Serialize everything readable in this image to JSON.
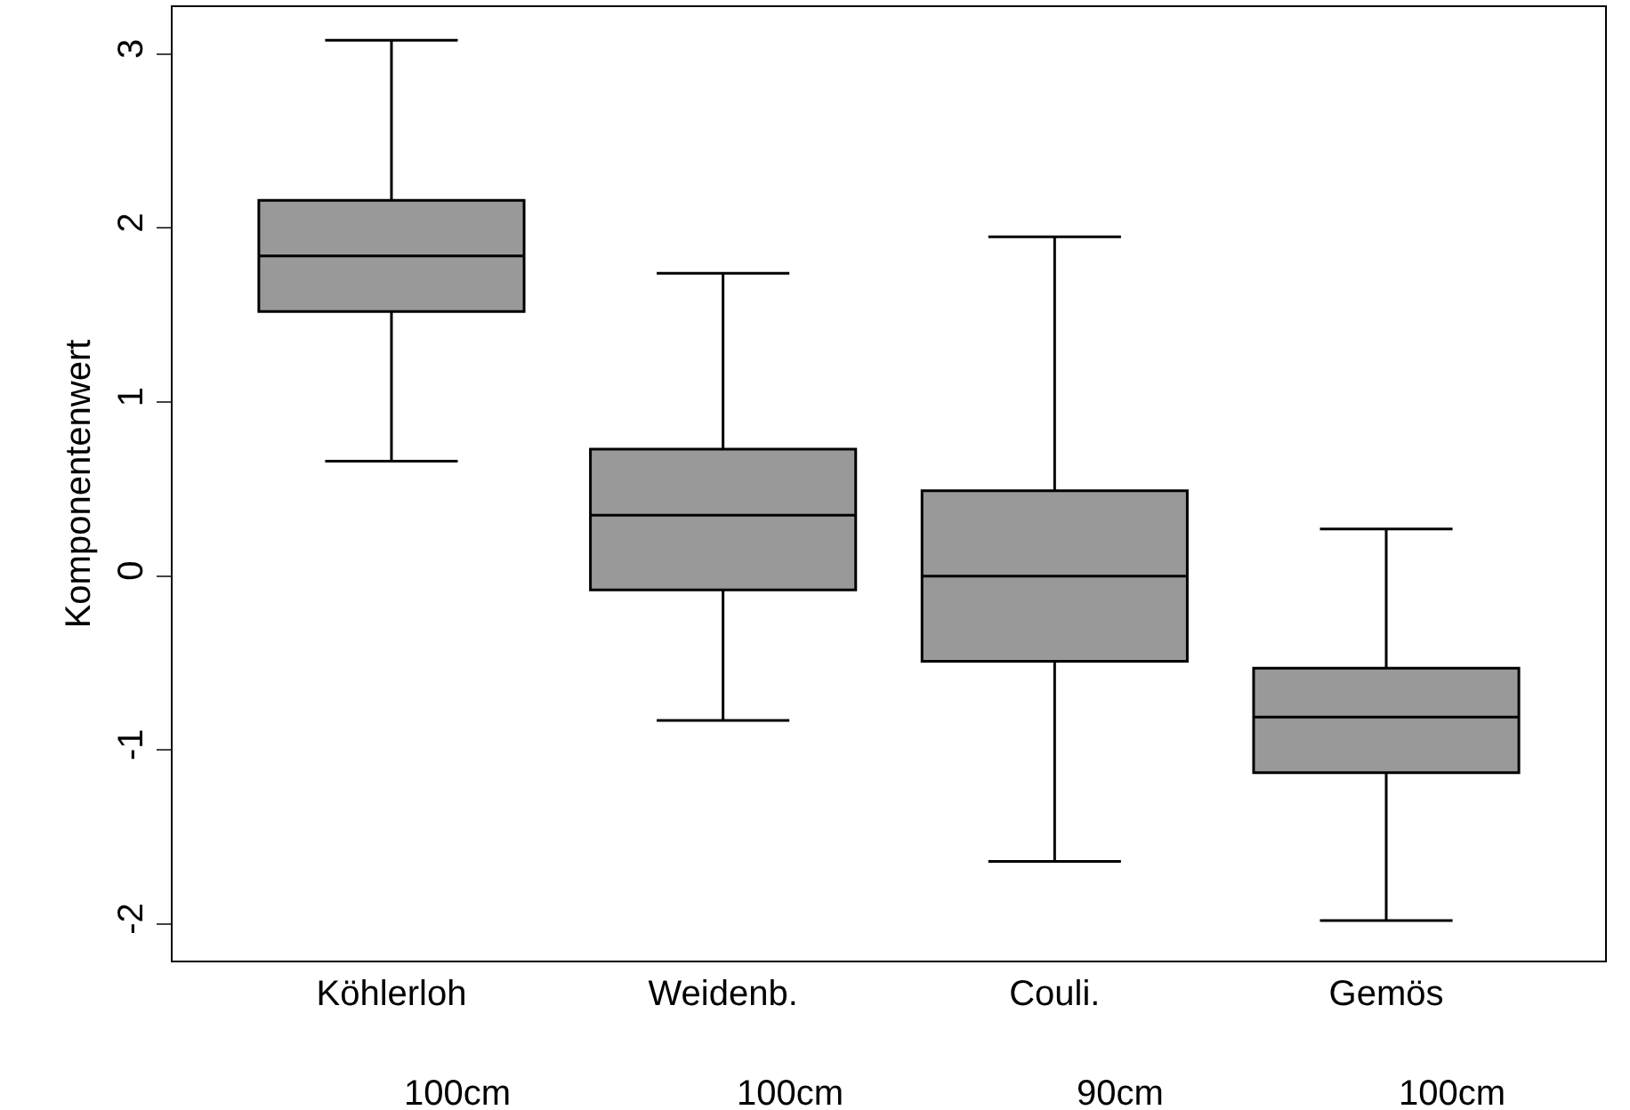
{
  "chart_data": {
    "type": "box",
    "ylabel": "Komponentenwert",
    "categories": [
      "Köhlerloh",
      "Weidenb.",
      "Couli.",
      "Gemös"
    ],
    "boxes": [
      {
        "low": 0.66,
        "q1": 1.52,
        "median": 1.84,
        "q3": 2.16,
        "high": 3.08
      },
      {
        "low": -0.83,
        "q1": -0.08,
        "median": 0.35,
        "q3": 0.73,
        "high": 1.74
      },
      {
        "low": -1.64,
        "q1": -0.49,
        "median": 0.0,
        "q3": 0.49,
        "high": 1.95
      },
      {
        "low": -1.98,
        "q1": -1.13,
        "median": -0.81,
        "q3": -0.53,
        "high": 0.27
      }
    ],
    "color": "#999999",
    "ylim": [
      -2.21,
      3.27
    ],
    "yticks": [
      -2,
      -1,
      0,
      1,
      2,
      3
    ],
    "grid": false,
    "annotations": [
      "100cm",
      "100cm",
      "90cm",
      "100cm"
    ]
  }
}
